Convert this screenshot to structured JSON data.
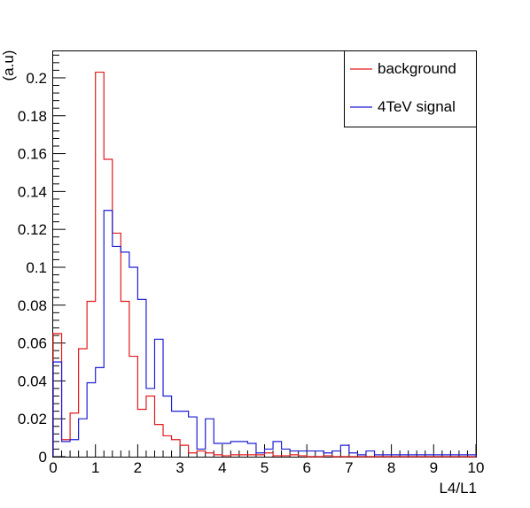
{
  "chart_data": {
    "type": "histogram",
    "title": "",
    "xlabel": "L4/L1",
    "ylabel": "(a.u)",
    "xlim": [
      0,
      10
    ],
    "ylim": [
      0,
      0.214
    ],
    "bin_width": 0.2,
    "grid": false,
    "legend_position": "top-right",
    "x_ticks": [
      "0",
      "1",
      "2",
      "3",
      "4",
      "5",
      "6",
      "7",
      "8",
      "9",
      "10"
    ],
    "y_ticks": [
      "0",
      "0.02",
      "0.04",
      "0.06",
      "0.08",
      "0.1",
      "0.12",
      "0.14",
      "0.16",
      "0.18",
      "0.2"
    ],
    "x_tick_values": [
      0,
      1,
      2,
      3,
      4,
      5,
      6,
      7,
      8,
      9,
      10
    ],
    "y_tick_values": [
      0,
      0.02,
      0.04,
      0.06,
      0.08,
      0.1,
      0.12,
      0.14,
      0.16,
      0.18,
      0.2
    ],
    "series": [
      {
        "name": "background",
        "color": "#e41a1c",
        "values": [
          0.065,
          0.009,
          0.023,
          0.057,
          0.082,
          0.203,
          0.157,
          0.118,
          0.082,
          0.053,
          0.025,
          0.032,
          0.017,
          0.011,
          0.009,
          0.006,
          0.002,
          0.003,
          0.002,
          0.001,
          0.0005,
          0.001,
          0.001,
          0.001,
          0.001,
          0.002,
          0.0005,
          0.0005,
          0.001,
          0.0005,
          0,
          0,
          0.0005,
          0,
          0,
          0,
          0,
          0,
          0,
          0,
          0,
          0,
          0,
          0,
          0,
          0,
          0,
          0,
          0,
          0
        ]
      },
      {
        "name": "4TeV signal",
        "color": "#1f1fd6",
        "values": [
          0.05,
          0.008,
          0.009,
          0.02,
          0.039,
          0.047,
          0.13,
          0.111,
          0.108,
          0.1,
          0.083,
          0.036,
          0.062,
          0.032,
          0.024,
          0.024,
          0.021,
          0.004,
          0.02,
          0.007,
          0.007,
          0.008,
          0.008,
          0.007,
          0.002,
          0.004,
          0.008,
          0.004,
          0.003,
          0.003,
          0.003,
          0.003,
          0.002,
          0.003,
          0.006,
          0.002,
          0.001,
          0.003,
          0.001,
          0.001,
          0.001,
          0.001,
          0.001,
          0.001,
          0.001,
          0.001,
          0.001,
          0.001,
          0.001,
          0.001
        ]
      }
    ]
  }
}
